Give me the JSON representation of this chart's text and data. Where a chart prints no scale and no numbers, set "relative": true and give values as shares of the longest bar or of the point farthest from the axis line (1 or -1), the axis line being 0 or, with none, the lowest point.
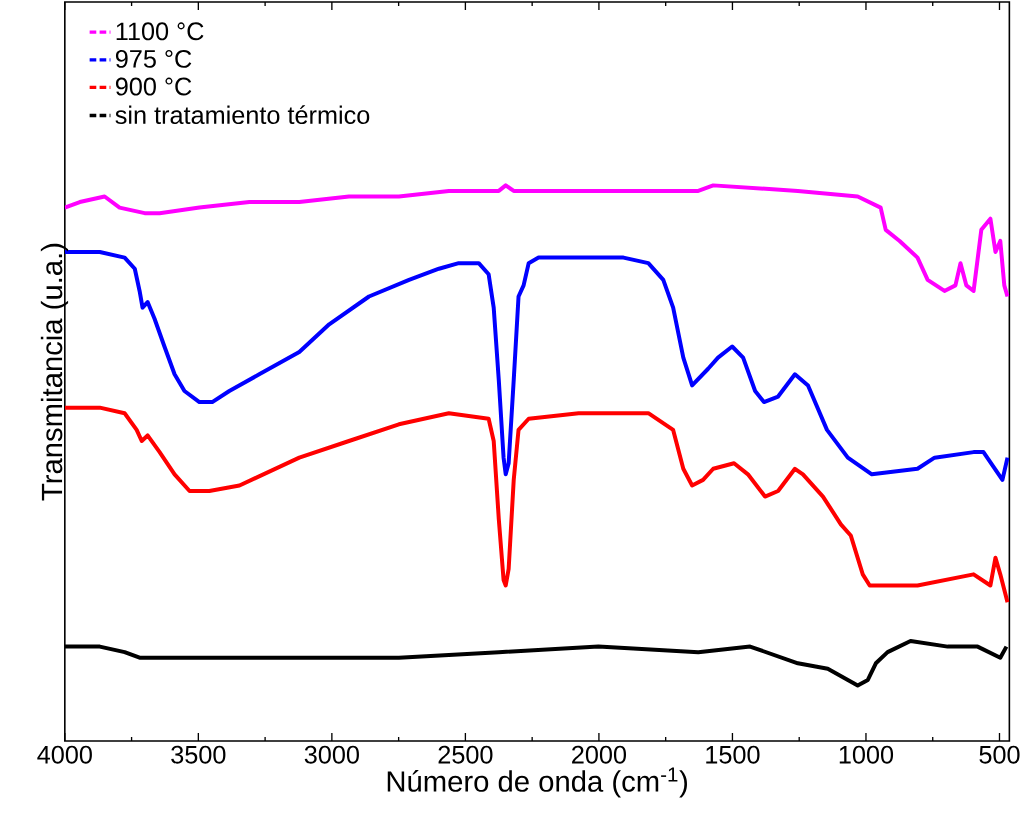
{
  "chart_data": {
    "type": "line",
    "xlabel": "Número de onda (cm$^{-1}$)",
    "ylabel": "Transmitancia (u.a.)",
    "xlim": [
      4000,
      463
    ],
    "xticks": [
      4000,
      3500,
      3000,
      2500,
      2000,
      1500,
      1000,
      500
    ],
    "relative": true,
    "legend": "top left",
    "line_style": "solid",
    "marker": "none",
    "series": [
      {
        "name": "1100 °C",
        "color": "#ff00ff",
        "x": [
          4000,
          3944,
          3851,
          3795,
          3701,
          3645,
          3496,
          3309,
          3122,
          2936,
          2749,
          2562,
          2375,
          2349,
          2319,
          2002,
          1628,
          1572,
          1255,
          1031,
          945,
          926,
          874,
          807,
          769,
          706,
          665,
          646,
          624,
          597,
          568,
          534,
          515,
          497,
          482,
          470
        ],
        "values": [
          0.96,
          0.97,
          0.98,
          0.96,
          0.95,
          0.95,
          0.96,
          0.97,
          0.97,
          0.98,
          0.98,
          0.99,
          0.99,
          1.0,
          0.99,
          0.99,
          0.99,
          1.0,
          0.99,
          0.98,
          0.96,
          0.92,
          0.9,
          0.87,
          0.83,
          0.81,
          0.82,
          0.86,
          0.82,
          0.81,
          0.92,
          0.94,
          0.88,
          0.9,
          0.82,
          0.8
        ]
      },
      {
        "name": "975 °C",
        "color": "#0000ff",
        "x": [
          4000,
          3869,
          3776,
          3738,
          3720,
          3709,
          3690,
          3664,
          3627,
          3589,
          3552,
          3496,
          3448,
          3384,
          3272,
          3122,
          3010,
          2861,
          2711,
          2599,
          2525,
          2450,
          2413,
          2394,
          2375,
          2357,
          2349,
          2338,
          2319,
          2301,
          2282,
          2263,
          2226,
          2002,
          1908,
          1815,
          1759,
          1722,
          1684,
          1651,
          1591,
          1554,
          1501,
          1460,
          1415,
          1382,
          1329,
          1266,
          1217,
          1146,
          1068,
          978,
          807,
          743,
          597,
          560,
          489,
          470
        ],
        "values": [
          0.88,
          0.88,
          0.87,
          0.85,
          0.81,
          0.78,
          0.79,
          0.76,
          0.71,
          0.66,
          0.63,
          0.61,
          0.61,
          0.63,
          0.66,
          0.7,
          0.75,
          0.8,
          0.83,
          0.85,
          0.86,
          0.86,
          0.84,
          0.78,
          0.65,
          0.51,
          0.48,
          0.5,
          0.65,
          0.8,
          0.82,
          0.86,
          0.87,
          0.87,
          0.87,
          0.86,
          0.83,
          0.78,
          0.69,
          0.64,
          0.67,
          0.69,
          0.71,
          0.69,
          0.63,
          0.61,
          0.62,
          0.66,
          0.64,
          0.56,
          0.51,
          0.48,
          0.49,
          0.51,
          0.52,
          0.52,
          0.47,
          0.51
        ]
      },
      {
        "name": "900 °C",
        "color": "#ff0000",
        "x": [
          4000,
          3869,
          3776,
          3731,
          3712,
          3690,
          3645,
          3589,
          3533,
          3459,
          3346,
          3122,
          2936,
          2749,
          2562,
          2413,
          2394,
          2375,
          2357,
          2349,
          2338,
          2319,
          2301,
          2263,
          2076,
          1815,
          1722,
          1684,
          1651,
          1610,
          1572,
          1494,
          1442,
          1378,
          1329,
          1266,
          1236,
          1161,
          1094,
          1057,
          1012,
          986,
          807,
          597,
          534,
          515,
          497,
          470
        ],
        "values": [
          0.6,
          0.6,
          0.59,
          0.56,
          0.54,
          0.55,
          0.52,
          0.48,
          0.45,
          0.45,
          0.46,
          0.51,
          0.54,
          0.57,
          0.59,
          0.58,
          0.54,
          0.4,
          0.29,
          0.28,
          0.31,
          0.47,
          0.56,
          0.58,
          0.59,
          0.59,
          0.56,
          0.49,
          0.46,
          0.47,
          0.49,
          0.5,
          0.48,
          0.44,
          0.45,
          0.49,
          0.48,
          0.44,
          0.39,
          0.37,
          0.3,
          0.28,
          0.28,
          0.3,
          0.28,
          0.33,
          0.3,
          0.25
        ]
      },
      {
        "name": "sin tratamiento térmico",
        "color": "#000000",
        "x": [
          4000,
          3869,
          3776,
          3720,
          3496,
          3122,
          2749,
          2375,
          2002,
          1628,
          1434,
          1255,
          1143,
          1031,
          993,
          963,
          919,
          833,
          694,
          582,
          497,
          474
        ],
        "values": [
          0.17,
          0.17,
          0.16,
          0.15,
          0.15,
          0.15,
          0.15,
          0.16,
          0.17,
          0.16,
          0.17,
          0.14,
          0.13,
          0.1,
          0.11,
          0.14,
          0.16,
          0.18,
          0.17,
          0.17,
          0.15,
          0.17
        ]
      }
    ]
  }
}
